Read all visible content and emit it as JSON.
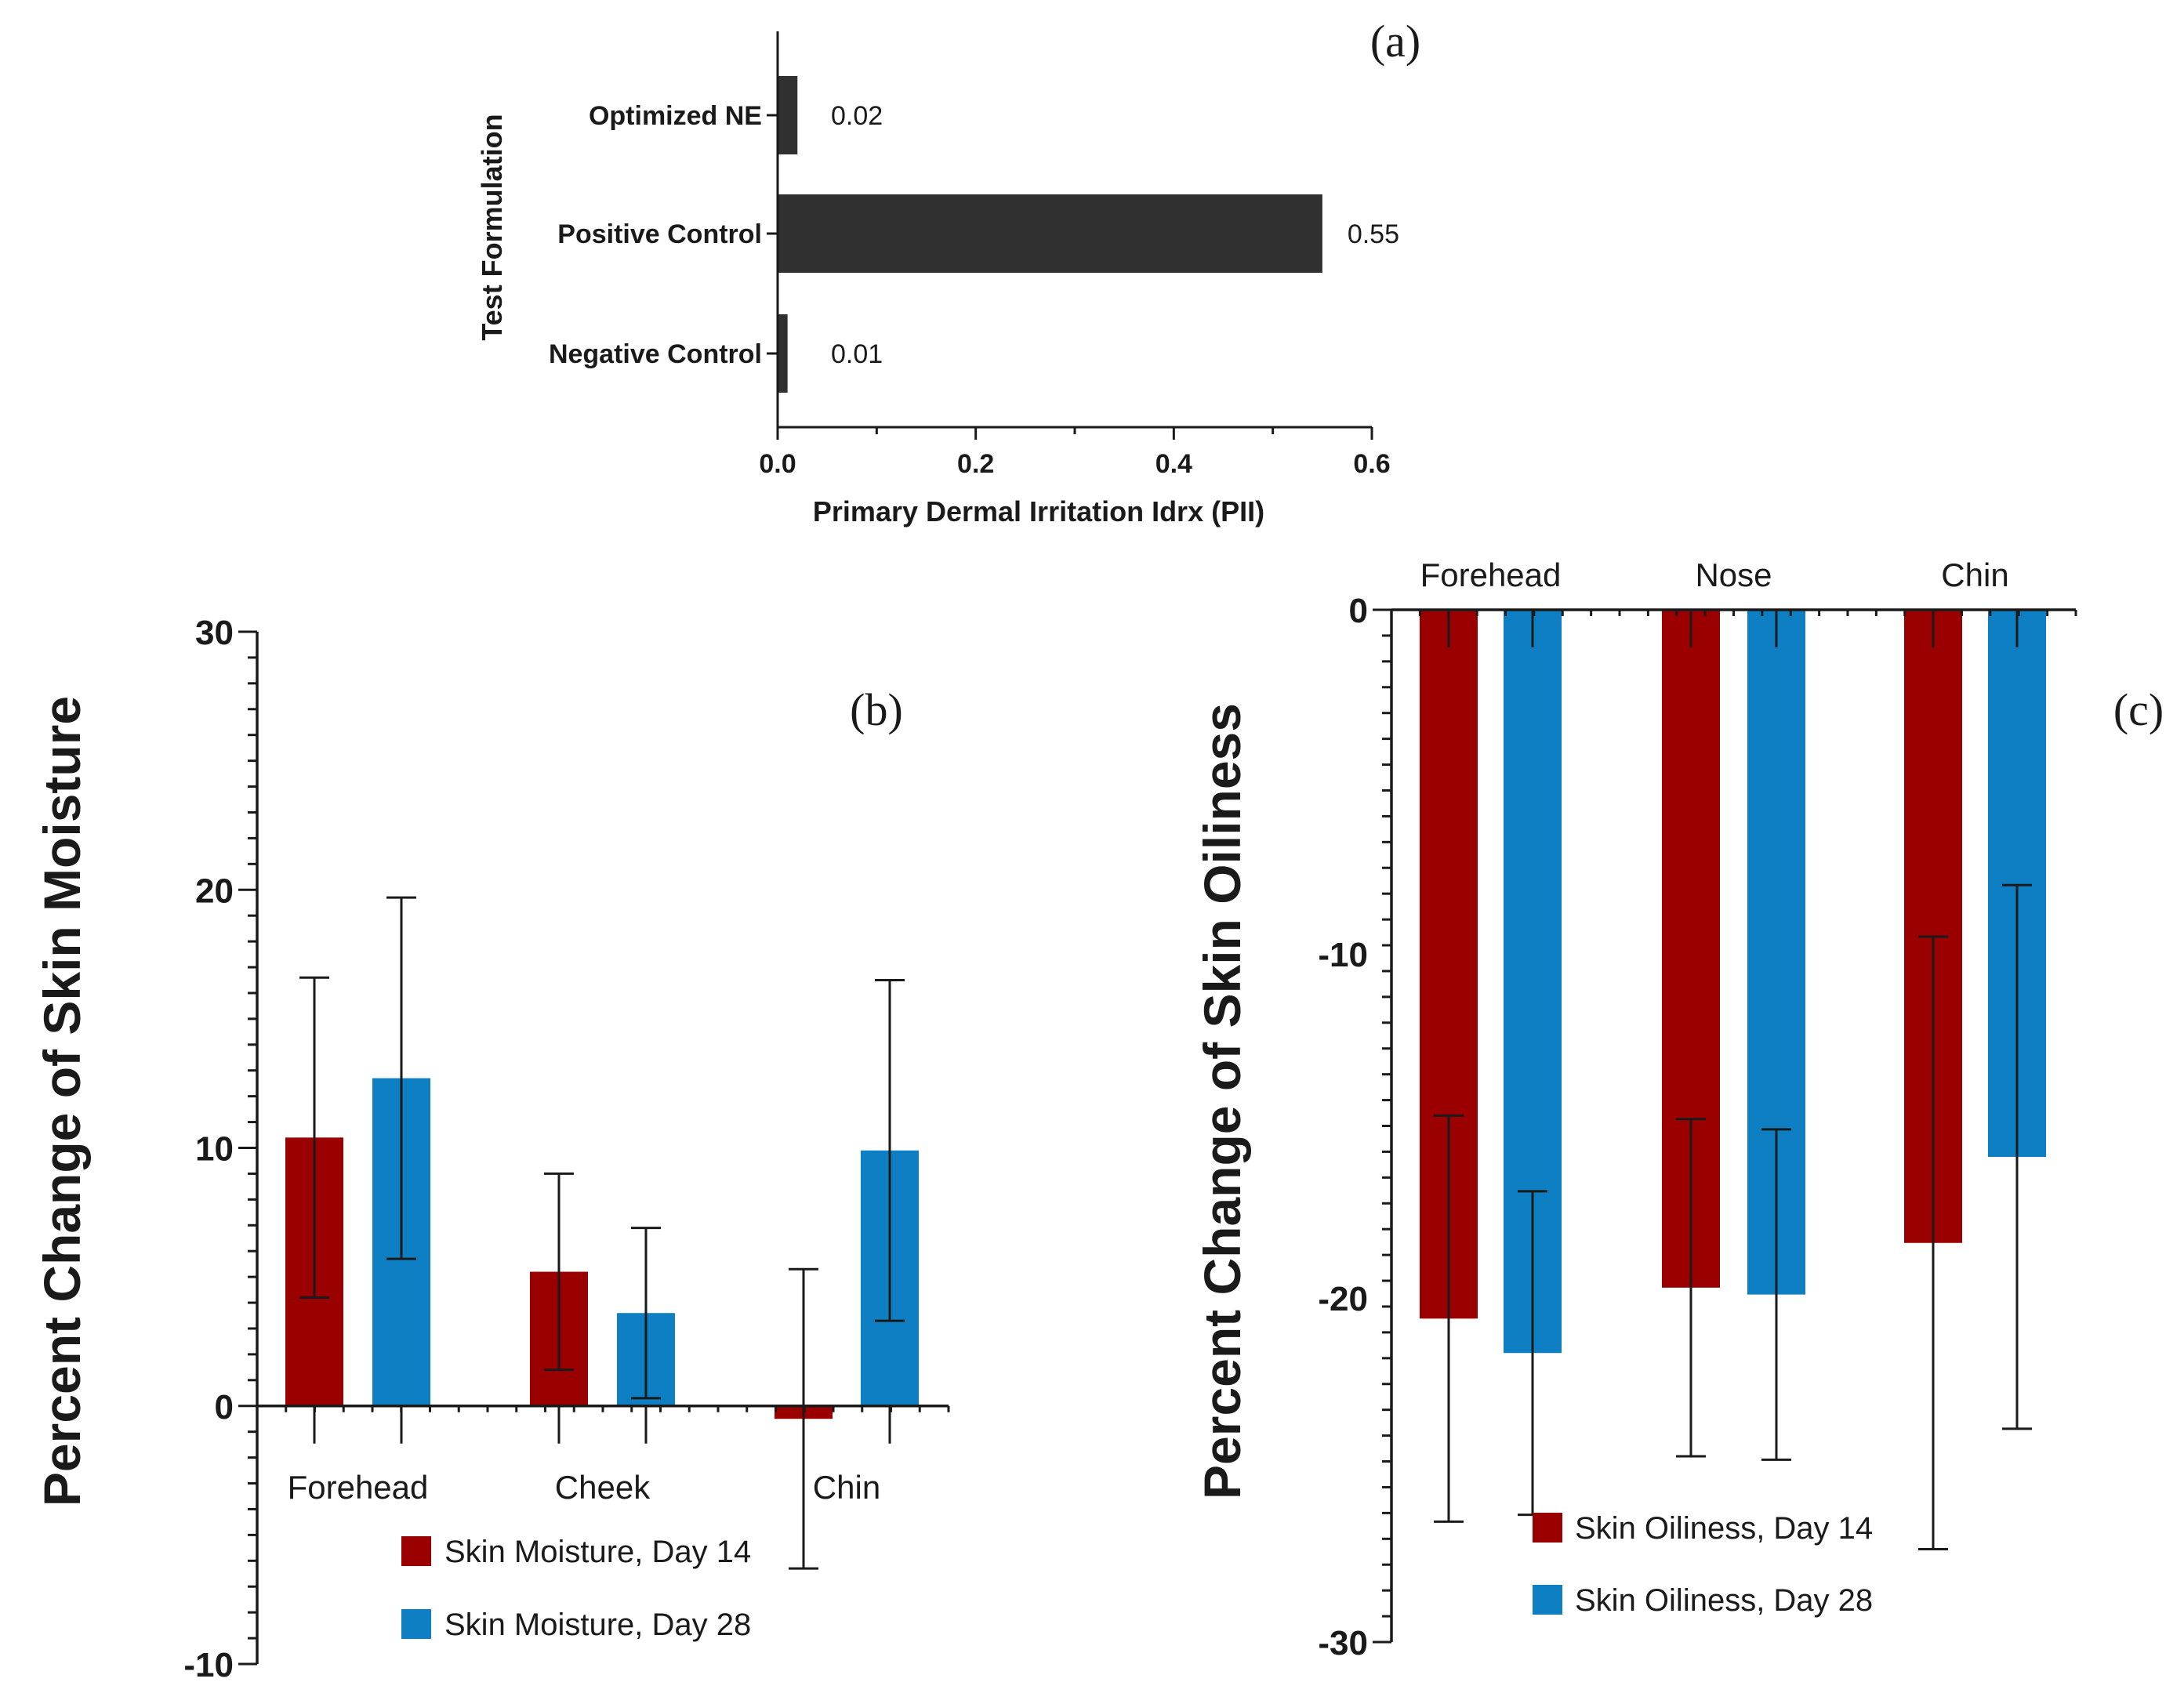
{
  "colors": {
    "ink": "#1a1a1a",
    "bar_dark": "#303030",
    "day14": "#9b0000",
    "day28": "#0d7fc2"
  },
  "chart_data": [
    {
      "panel": "(a)",
      "type": "bar",
      "orientation": "horizontal",
      "categories": [
        "Optimized NE",
        "Positive Control",
        "Negative Control"
      ],
      "values": [
        0.02,
        0.55,
        0.01
      ],
      "value_labels": [
        "0.02",
        "0.55",
        "0.01"
      ],
      "xlabel": "Primary Dermal Irritation Idrx (PII)",
      "ylabel": "Test Formulation",
      "xlim": [
        0,
        0.6
      ],
      "xticks": [
        "0.0",
        "0.2",
        "0.4",
        "0.6"
      ],
      "xtick_values": [
        0,
        0.2,
        0.4,
        0.6
      ]
    },
    {
      "panel": "(b)",
      "type": "bar",
      "categories": [
        "Forehead",
        "Cheek",
        "Chin"
      ],
      "series": [
        {
          "name": "Skin Moisture, Day 14",
          "values": [
            10.4,
            5.2,
            -0.5
          ],
          "errors": [
            6.2,
            3.8,
            5.8
          ]
        },
        {
          "name": "Skin Moisture, Day 28",
          "values": [
            12.7,
            3.6,
            9.9
          ],
          "errors": [
            7.0,
            3.3,
            6.6
          ]
        }
      ],
      "ylabel": "Percent Change of Skin Moisture",
      "ylim": [
        -10,
        30
      ],
      "yticks": [
        "30",
        "20",
        "10",
        "0",
        "-10"
      ],
      "ytick_values": [
        30,
        20,
        10,
        0,
        -10
      ]
    },
    {
      "panel": "(c)",
      "type": "bar",
      "categories": [
        "Forehead",
        "Nose",
        "Chin"
      ],
      "series": [
        {
          "name": "Skin Oiliness, Day 14",
          "values": [
            -20.6,
            -19.7,
            -18.4
          ],
          "errors": [
            5.9,
            4.9,
            8.9
          ]
        },
        {
          "name": "Skin Oiliness, Day 28",
          "values": [
            -21.6,
            -19.9,
            -15.9
          ],
          "errors": [
            4.7,
            4.8,
            7.9
          ]
        }
      ],
      "ylabel": "Percent Change of Skin Oiliness",
      "ylim": [
        -30,
        0
      ],
      "yticks": [
        "0",
        "-10",
        "-20",
        "-30"
      ],
      "ytick_values": [
        0,
        -10,
        -20,
        -30
      ]
    }
  ]
}
